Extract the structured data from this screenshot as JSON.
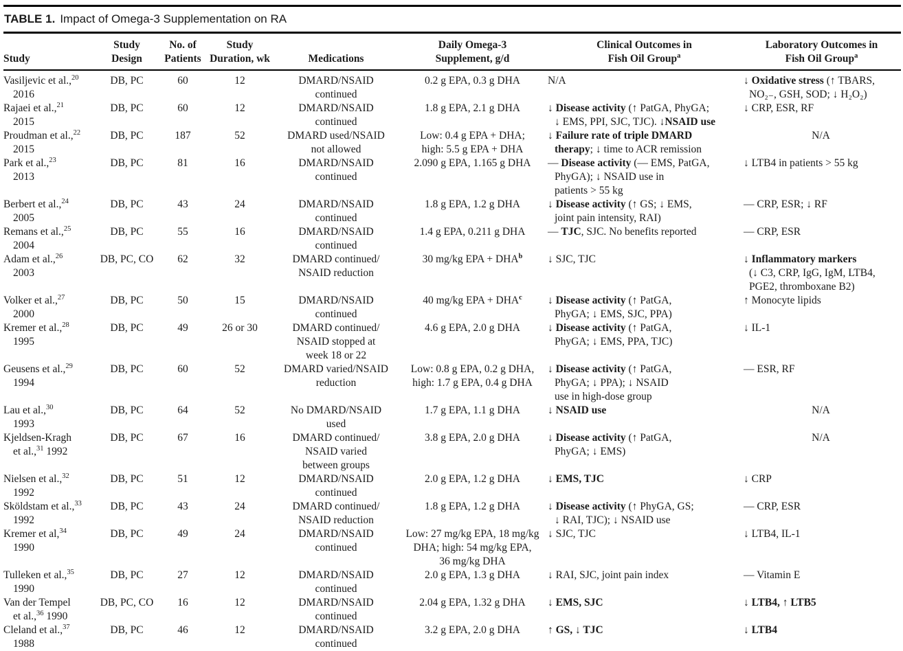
{
  "title": {
    "label": "TABLE 1.",
    "caption": "Impact of Omega-3 Supplementation on RA"
  },
  "columns": [
    {
      "label": [
        {
          "t": "Study"
        }
      ]
    },
    {
      "label": [
        {
          "t": "Study\nDesign"
        }
      ]
    },
    {
      "label": [
        {
          "t": "No. of\nPatients"
        }
      ]
    },
    {
      "label": [
        {
          "t": "Study\nDuration, wk"
        }
      ]
    },
    {
      "label": [
        {
          "t": "Medications"
        }
      ]
    },
    {
      "label": [
        {
          "t": "Daily Omega-3\nSupplement, g/d"
        }
      ]
    },
    {
      "label": [
        {
          "t": "Clinical Outcomes in\nFish Oil Group"
        },
        {
          "t": "a",
          "s": 1
        }
      ]
    },
    {
      "label": [
        {
          "t": "Laboratory Outcomes in\nFish Oil Group"
        },
        {
          "t": "a",
          "s": 1
        }
      ]
    }
  ],
  "rows": [
    {
      "study": [
        {
          "t": "Vasiljevic et al.,"
        },
        {
          "t": "20",
          "s": 1
        },
        {
          "t": "\n2016"
        }
      ],
      "design": "DB, PC",
      "patients": "60",
      "duration": "12",
      "medications": "DMARD/NSAID\ncontinued",
      "supplement": [
        {
          "t": "0.2 g EPA, 0.3 g DHA"
        }
      ],
      "clinical": [
        {
          "t": "N/A"
        }
      ],
      "laboratory": [
        {
          "t": "↓ "
        },
        {
          "t": "Oxidative stress",
          "b": 1
        },
        {
          "t": " (↑ TBARS,\nNO₂₋, GSH, SOD; ↓ H₂O₂)"
        }
      ]
    },
    {
      "study": [
        {
          "t": "Rajaei et al.,"
        },
        {
          "t": "21",
          "s": 1
        },
        {
          "t": "\n2015"
        }
      ],
      "design": "DB, PC",
      "patients": "60",
      "duration": "12",
      "medications": "DMARD/NSAID\ncontinued",
      "supplement": [
        {
          "t": "1.8 g EPA, 2.1 g DHA"
        }
      ],
      "clinical": [
        {
          "t": "↓ "
        },
        {
          "t": "Disease activity",
          "b": 1
        },
        {
          "t": " (↑ PatGA, PhyGA;\n↓ EMS, PPI, SJC, TJC). ↓"
        },
        {
          "t": "NSAID use",
          "b": 1
        }
      ],
      "laboratory": [
        {
          "t": "↓ CRP, ESR, RF"
        }
      ]
    },
    {
      "study": [
        {
          "t": "Proudman et al.,"
        },
        {
          "t": "22",
          "s": 1
        },
        {
          "t": "\n2015"
        }
      ],
      "design": "DB, PC",
      "patients": "187",
      "duration": "52",
      "medications": "DMARD used/NSAID\nnot allowed",
      "supplement": [
        {
          "t": "Low: 0.4 g EPA + DHA;\nhigh: 5.5 g EPA + DHA"
        }
      ],
      "clinical": [
        {
          "t": "↓ "
        },
        {
          "t": "Failure rate of triple DMARD\ntherapy",
          "b": 1
        },
        {
          "t": "; ↓ time to ACR remission"
        }
      ],
      "laboratory": [
        {
          "t": "N/A"
        }
      ],
      "laboratory_align": "center"
    },
    {
      "study": [
        {
          "t": "Park et al.,"
        },
        {
          "t": "23",
          "s": 1
        },
        {
          "t": "\n2013"
        }
      ],
      "design": "DB, PC",
      "patients": "81",
      "duration": "16",
      "medications": "DMARD/NSAID\ncontinued",
      "supplement": [
        {
          "t": "2.090 g EPA, 1.165 g DHA"
        }
      ],
      "clinical": [
        {
          "t": "— "
        },
        {
          "t": "Disease activity",
          "b": 1
        },
        {
          "t": " (— EMS, PatGA,\nPhyGA); ↓ NSAID use in\npatients > 55 kg"
        }
      ],
      "laboratory": [
        {
          "t": "↓ LTB4 in patients > 55 kg"
        }
      ]
    },
    {
      "study": [
        {
          "t": "Berbert et al.,"
        },
        {
          "t": "24",
          "s": 1
        },
        {
          "t": "\n2005"
        }
      ],
      "design": "DB, PC",
      "patients": "43",
      "duration": "24",
      "medications": "DMARD/NSAID\ncontinued",
      "supplement": [
        {
          "t": "1.8 g EPA, 1.2 g DHA"
        }
      ],
      "clinical": [
        {
          "t": "↓ "
        },
        {
          "t": "Disease activity",
          "b": 1
        },
        {
          "t": " (↑ GS; ↓ EMS,\njoint pain intensity, RAI)"
        }
      ],
      "laboratory": [
        {
          "t": "— CRP, ESR; ↓ RF"
        }
      ]
    },
    {
      "study": [
        {
          "t": "Remans et al.,"
        },
        {
          "t": "25",
          "s": 1
        },
        {
          "t": "\n2004"
        }
      ],
      "design": "DB, PC",
      "patients": "55",
      "duration": "16",
      "medications": "DMARD/NSAID\ncontinued",
      "supplement": [
        {
          "t": "1.4 g EPA, 0.211 g DHA"
        }
      ],
      "clinical": [
        {
          "t": "— "
        },
        {
          "t": "TJC",
          "b": 1
        },
        {
          "t": ", SJC. No benefits reported"
        }
      ],
      "laboratory": [
        {
          "t": "— CRP, ESR"
        }
      ]
    },
    {
      "study": [
        {
          "t": "Adam et al.,"
        },
        {
          "t": "26",
          "s": 1
        },
        {
          "t": "\n2003"
        }
      ],
      "design": "DB, PC, CO",
      "patients": "62",
      "duration": "32",
      "medications": "DMARD continued/\nNSAID reduction",
      "supplement": [
        {
          "t": "30 mg/kg EPA + DHA"
        },
        {
          "t": "b",
          "s": 1,
          "b": 1
        }
      ],
      "clinical": [
        {
          "t": "↓ SJC, TJC"
        }
      ],
      "laboratory": [
        {
          "t": "↓ "
        },
        {
          "t": "Inflammatory markers",
          "b": 1
        },
        {
          "t": "\n(↓ C3, CRP, IgG, IgM, LTB4,\nPGE2, thromboxane B2)"
        }
      ]
    },
    {
      "study": [
        {
          "t": "Volker et al.,"
        },
        {
          "t": "27",
          "s": 1
        },
        {
          "t": "\n2000"
        }
      ],
      "design": "DB, PC",
      "patients": "50",
      "duration": "15",
      "medications": "DMARD/NSAID\ncontinued",
      "supplement": [
        {
          "t": "40 mg/kg EPA + DHA"
        },
        {
          "t": "c",
          "s": 1,
          "b": 1
        }
      ],
      "clinical": [
        {
          "t": "↓ "
        },
        {
          "t": "Disease activity",
          "b": 1
        },
        {
          "t": " (↑ PatGA,\nPhyGA; ↓ EMS, SJC, PPA)"
        }
      ],
      "laboratory": [
        {
          "t": "↑ Monocyte lipids"
        }
      ]
    },
    {
      "study": [
        {
          "t": "Kremer et al.,"
        },
        {
          "t": "28",
          "s": 1
        },
        {
          "t": "\n1995"
        }
      ],
      "design": "DB, PC",
      "patients": "49",
      "duration": "26 or 30",
      "medications": "DMARD continued/\nNSAID stopped at\nweek 18 or 22",
      "supplement": [
        {
          "t": "4.6 g EPA, 2.0 g DHA"
        }
      ],
      "clinical": [
        {
          "t": "↓ "
        },
        {
          "t": "Disease activity",
          "b": 1
        },
        {
          "t": " (↑ PatGA,\nPhyGA; ↓ EMS, PPA, TJC)"
        }
      ],
      "laboratory": [
        {
          "t": "↓ IL-1"
        }
      ]
    },
    {
      "study": [
        {
          "t": "Geusens et al.,"
        },
        {
          "t": "29",
          "s": 1
        },
        {
          "t": "\n1994"
        }
      ],
      "design": "DB, PC",
      "patients": "60",
      "duration": "52",
      "medications": "DMARD varied/NSAID\nreduction",
      "supplement": [
        {
          "t": "Low: 0.8 g EPA, 0.2 g DHA,\nhigh: 1.7 g EPA, 0.4 g DHA"
        }
      ],
      "clinical": [
        {
          "t": "↓ "
        },
        {
          "t": "Disease activity",
          "b": 1
        },
        {
          "t": " (↑ PatGA,\nPhyGA; ↓ PPA); ↓ NSAID\nuse in high-dose group"
        }
      ],
      "laboratory": [
        {
          "t": "— ESR, RF"
        }
      ]
    },
    {
      "study": [
        {
          "t": "Lau et al.,"
        },
        {
          "t": "30",
          "s": 1
        },
        {
          "t": "\n1993"
        }
      ],
      "design": "DB, PC",
      "patients": "64",
      "duration": "52",
      "medications": "No DMARD/NSAID\nused",
      "supplement": [
        {
          "t": "1.7 g EPA, 1.1 g DHA"
        }
      ],
      "clinical": [
        {
          "t": "↓ "
        },
        {
          "t": "NSAID use",
          "b": 1
        }
      ],
      "laboratory": [
        {
          "t": "N/A"
        }
      ],
      "laboratory_align": "center"
    },
    {
      "study": [
        {
          "t": "Kjeldsen-Kragh\net al.,"
        },
        {
          "t": "31",
          "s": 1
        },
        {
          "t": " 1992"
        }
      ],
      "design": "DB, PC",
      "patients": "67",
      "duration": "16",
      "medications": "DMARD continued/\nNSAID varied\nbetween groups",
      "supplement": [
        {
          "t": "3.8 g EPA, 2.0 g DHA"
        }
      ],
      "clinical": [
        {
          "t": "↓ "
        },
        {
          "t": "Disease activity",
          "b": 1
        },
        {
          "t": " (↑ PatGA,\nPhyGA; ↓ EMS)"
        }
      ],
      "laboratory": [
        {
          "t": "N/A"
        }
      ],
      "laboratory_align": "center"
    },
    {
      "study": [
        {
          "t": "Nielsen et al.,"
        },
        {
          "t": "32",
          "s": 1
        },
        {
          "t": "\n1992"
        }
      ],
      "design": "DB, PC",
      "patients": "51",
      "duration": "12",
      "medications": "DMARD/NSAID\ncontinued",
      "supplement": [
        {
          "t": "2.0 g EPA, 1.2 g DHA"
        }
      ],
      "clinical": [
        {
          "t": "↓ "
        },
        {
          "t": "EMS, TJC",
          "b": 1
        }
      ],
      "laboratory": [
        {
          "t": "↓ CRP"
        }
      ]
    },
    {
      "study": [
        {
          "t": "Sköldstam et al.,"
        },
        {
          "t": "33",
          "s": 1
        },
        {
          "t": "\n1992"
        }
      ],
      "design": "DB, PC",
      "patients": "43",
      "duration": "24",
      "medications": "DMARD continued/\nNSAID reduction",
      "supplement": [
        {
          "t": "1.8 g EPA, 1.2 g DHA"
        }
      ],
      "clinical": [
        {
          "t": "↓ "
        },
        {
          "t": "Disease activity",
          "b": 1
        },
        {
          "t": " (↑ PhyGA, GS;\n↓ RAI, TJC); ↓ NSAID use"
        }
      ],
      "laboratory": [
        {
          "t": "— CRP, ESR"
        }
      ]
    },
    {
      "study": [
        {
          "t": "Kremer et al,"
        },
        {
          "t": "34",
          "s": 1
        },
        {
          "t": "\n1990"
        }
      ],
      "design": "DB, PC",
      "patients": "49",
      "duration": "24",
      "medications": "DMARD/NSAID\ncontinued",
      "supplement": [
        {
          "t": "Low: 27 mg/kg EPA, 18 mg/kg\nDHA; high: 54 mg/kg EPA,\n36 mg/kg DHA"
        }
      ],
      "clinical": [
        {
          "t": "↓ SJC, TJC"
        }
      ],
      "laboratory": [
        {
          "t": "↓ LTB4, IL-1"
        }
      ]
    },
    {
      "study": [
        {
          "t": "Tulleken et al.,"
        },
        {
          "t": "35",
          "s": 1
        },
        {
          "t": "\n1990"
        }
      ],
      "design": "DB, PC",
      "patients": "27",
      "duration": "12",
      "medications": "DMARD/NSAID\ncontinued",
      "supplement": [
        {
          "t": "2.0 g EPA, 1.3 g DHA"
        }
      ],
      "clinical": [
        {
          "t": "↓ RAI, SJC, joint pain index"
        }
      ],
      "laboratory": [
        {
          "t": "— Vitamin E"
        }
      ]
    },
    {
      "study": [
        {
          "t": "Van der Tempel\net al.,"
        },
        {
          "t": "36",
          "s": 1
        },
        {
          "t": " 1990"
        }
      ],
      "design": "DB, PC, CO",
      "patients": "16",
      "duration": "12",
      "medications": "DMARD/NSAID\ncontinued",
      "supplement": [
        {
          "t": "2.04 g EPA, 1.32 g DHA"
        }
      ],
      "clinical": [
        {
          "t": "↓ EMS, SJC",
          "b": 1
        }
      ],
      "laboratory": [
        {
          "t": "↓ LTB4, ↑ LTB5",
          "b": 1
        }
      ]
    },
    {
      "study": [
        {
          "t": "Cleland et al.,"
        },
        {
          "t": "37",
          "s": 1
        },
        {
          "t": "\n1988"
        }
      ],
      "design": "DB, PC",
      "patients": "46",
      "duration": "12",
      "medications": "DMARD/NSAID\ncontinued",
      "supplement": [
        {
          "t": "3.2 g EPA, 2.0 g DHA"
        }
      ],
      "clinical": [
        {
          "t": "↑ GS, ↓ TJC",
          "b": 1
        }
      ],
      "laboratory": [
        {
          "t": "↓ LTB4",
          "b": 1
        }
      ]
    }
  ]
}
